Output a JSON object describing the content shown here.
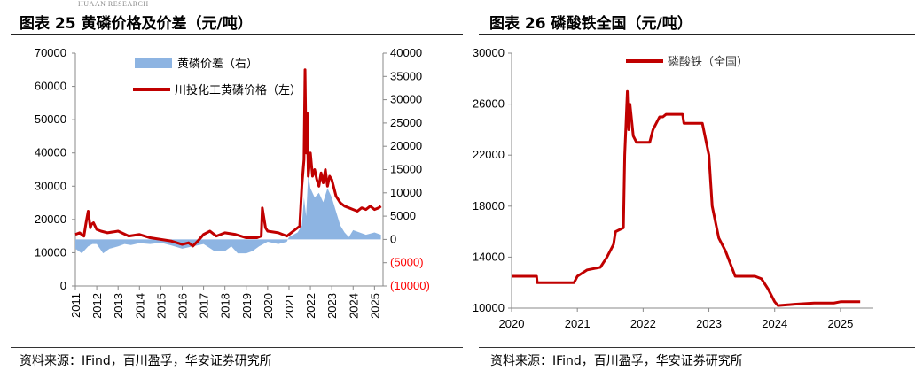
{
  "header": {
    "watermark": "HUAAN RESEARCH"
  },
  "left": {
    "title": "图表 25 黄磷价格及价差（元/吨）",
    "source": "资料来源：IFind，百川盈孚，华安证券研究所"
  },
  "right": {
    "title": "图表 26 磷酸铁全国（元/吨）",
    "source": "资料来源：IFind，百川盈孚，华安证券研究所"
  },
  "colors": {
    "line": "#c00000",
    "area": "#8db4e2",
    "negative_tick": "#ff0000"
  },
  "chart_data": [
    {
      "type": "line",
      "chart_id": "yellow-phosphorus",
      "xlim": [
        2011,
        2025.4
      ],
      "x_ticks": [
        "2011",
        "2012",
        "2013",
        "2014",
        "2015",
        "2016",
        "2017",
        "2018",
        "2019",
        "2020",
        "2021",
        "2022",
        "2023",
        "2024",
        "2025"
      ],
      "ylim_left": [
        0,
        70000
      ],
      "y_ticks_left": [
        "0",
        "10000",
        "20000",
        "30000",
        "40000",
        "50000",
        "60000",
        "70000"
      ],
      "ylim_right": [
        -10000,
        40000
      ],
      "y_ticks_right": [
        "(10000)",
        "(5000)",
        "0",
        "5000",
        "10000",
        "15000",
        "20000",
        "25000",
        "30000",
        "35000",
        "40000"
      ],
      "legend": {
        "placement": "top",
        "entries": [
          "黄磷价差（右）",
          "川投化工黄磷价格（左）"
        ]
      },
      "series": [
        {
          "name": "川投化工黄磷价格（左）",
          "axis": "left",
          "x": [
            2011.0,
            2011.2,
            2011.4,
            2011.5,
            2011.6,
            2011.7,
            2011.75,
            2011.85,
            2012.0,
            2012.2,
            2012.5,
            2013.0,
            2013.5,
            2014.0,
            2014.5,
            2015.0,
            2015.5,
            2016.0,
            2016.3,
            2016.5,
            2016.8,
            2017.0,
            2017.3,
            2017.6,
            2018.0,
            2018.5,
            2019.0,
            2019.5,
            2019.7,
            2019.75,
            2019.9,
            2020.0,
            2020.5,
            2020.9,
            2021.0,
            2021.3,
            2021.5,
            2021.6,
            2021.7,
            2021.75,
            2021.8,
            2021.85,
            2021.9,
            2022.0,
            2022.1,
            2022.2,
            2022.3,
            2022.4,
            2022.5,
            2022.6,
            2022.7,
            2022.8,
            2022.9,
            2023.0,
            2023.2,
            2023.4,
            2023.6,
            2023.8,
            2024.0,
            2024.2,
            2024.4,
            2024.6,
            2024.8,
            2025.0,
            2025.2,
            2025.3
          ],
          "values": [
            15500,
            16000,
            15000,
            19000,
            22500,
            17500,
            18500,
            19000,
            17000,
            16500,
            16000,
            16500,
            15000,
            15500,
            14500,
            14000,
            13500,
            12500,
            13000,
            12000,
            14000,
            15500,
            16500,
            15000,
            16000,
            15500,
            14500,
            14500,
            15000,
            23500,
            17500,
            16500,
            16000,
            15000,
            15500,
            17000,
            18000,
            30000,
            38000,
            65000,
            40000,
            52000,
            33000,
            40000,
            33000,
            35000,
            32000,
            30000,
            34000,
            31000,
            35000,
            30000,
            33000,
            32000,
            27000,
            25000,
            24000,
            23500,
            23000,
            22500,
            23500,
            23000,
            24000,
            23000,
            23500,
            24000
          ]
        },
        {
          "name": "黄磷价差（右）",
          "axis": "right",
          "x": [
            2011.0,
            2011.3,
            2011.6,
            2011.8,
            2012.0,
            2012.3,
            2012.6,
            2013.0,
            2013.3,
            2013.6,
            2014.0,
            2014.5,
            2015.0,
            2015.5,
            2016.0,
            2016.5,
            2017.0,
            2017.5,
            2018.0,
            2018.3,
            2018.6,
            2019.0,
            2019.3,
            2019.6,
            2019.8,
            2020.0,
            2020.5,
            2020.9,
            2021.0,
            2021.4,
            2021.6,
            2021.7,
            2021.8,
            2021.9,
            2022.0,
            2022.2,
            2022.4,
            2022.6,
            2022.8,
            2023.0,
            2023.2,
            2023.4,
            2023.6,
            2023.8,
            2024.0,
            2024.3,
            2024.6,
            2025.0,
            2025.3
          ],
          "values": [
            -2000,
            -3000,
            -1500,
            -1000,
            -1000,
            -3000,
            -2000,
            -1500,
            -1000,
            -1200,
            -800,
            -1000,
            -700,
            -1300,
            -2000,
            -1500,
            -1000,
            -2500,
            -2500,
            -1500,
            -3000,
            -3000,
            -2500,
            -1500,
            -1000,
            -500,
            -1000,
            -500,
            500,
            1500,
            3000,
            9000,
            5000,
            14000,
            11000,
            9000,
            10000,
            8000,
            11000,
            9000,
            6000,
            3000,
            1500,
            500,
            2000,
            1500,
            1000,
            1500,
            1000
          ]
        }
      ]
    },
    {
      "type": "line",
      "chart_id": "iron-phosphate",
      "xlim": [
        2020,
        2025.5
      ],
      "x_ticks": [
        "2020",
        "2021",
        "2022",
        "2023",
        "2024",
        "2025"
      ],
      "ylim": [
        10000,
        30000
      ],
      "y_ticks": [
        "10000",
        "14000",
        "18000",
        "22000",
        "26000",
        "30000"
      ],
      "legend": {
        "placement": "top",
        "entries": [
          "磷酸铁（全国）"
        ]
      },
      "series": [
        {
          "name": "磷酸铁（全国）",
          "x": [
            2020.0,
            2020.38,
            2020.39,
            2020.95,
            2021.0,
            2021.15,
            2021.35,
            2021.45,
            2021.55,
            2021.58,
            2021.7,
            2021.72,
            2021.76,
            2021.78,
            2021.8,
            2021.85,
            2021.9,
            2022.0,
            2022.1,
            2022.15,
            2022.2,
            2022.25,
            2022.3,
            2022.35,
            2022.4,
            2022.6,
            2022.62,
            2022.9,
            2023.0,
            2023.05,
            2023.15,
            2023.25,
            2023.4,
            2023.5,
            2023.7,
            2023.8,
            2023.9,
            2024.0,
            2024.05,
            2024.3,
            2024.6,
            2024.9,
            2025.0,
            2025.3
          ],
          "values": [
            12500,
            12500,
            12000,
            12000,
            12500,
            13000,
            13200,
            14000,
            15000,
            16000,
            16300,
            22000,
            27000,
            24000,
            26000,
            23500,
            23000,
            23000,
            23000,
            24000,
            24500,
            25000,
            25000,
            25200,
            25200,
            25200,
            24500,
            24500,
            22000,
            18000,
            15500,
            14500,
            12500,
            12500,
            12500,
            12300,
            11500,
            10500,
            10200,
            10300,
            10400,
            10400,
            10500,
            10500
          ]
        }
      ]
    }
  ]
}
